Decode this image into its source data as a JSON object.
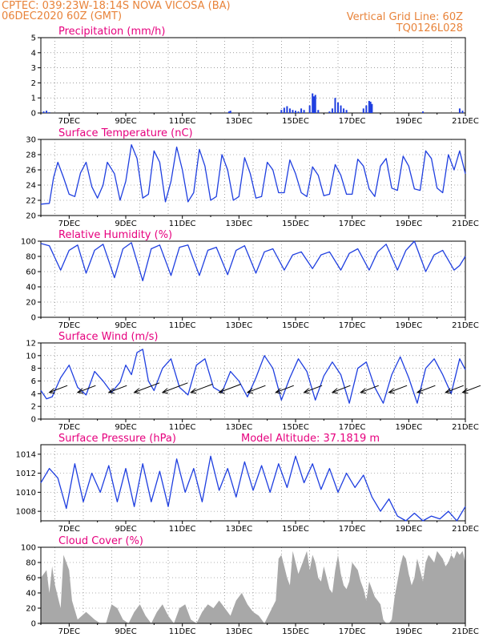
{
  "header": {
    "line1_left": "CPTEC:   039:23W-18:14S   NOVA VICOSA (BA)",
    "line2_left": "06DEC2020 60Z (GMT)",
    "line1_right": "Vertical Grid Line: 60Z",
    "line2_right": "TQ0126L028"
  },
  "colors": {
    "header": "#e8833a",
    "title": "#e6007e",
    "line": "#1f3fe0",
    "bar": "#1f3fe0",
    "cloud": "#a8a8a8",
    "grid": "#666666"
  },
  "date_ticks": [
    "7DEC",
    "9DEC",
    "11DEC",
    "13DEC",
    "15DEC",
    "17DEC",
    "19DEC",
    "21DEC"
  ],
  "chart_data": [
    {
      "id": "precip",
      "type": "bar",
      "title": "Precipitation (mm/h)",
      "ylim": [
        0,
        5
      ],
      "yticks": [
        0,
        1,
        2,
        3,
        4,
        5
      ],
      "x_days": [
        6.1,
        6.2,
        6.3,
        12.65,
        12.7,
        14.5,
        14.6,
        14.7,
        14.8,
        14.9,
        15.0,
        15.1,
        15.2,
        15.3,
        15.5,
        15.6,
        15.65,
        15.7,
        15.8,
        16.2,
        16.3,
        16.4,
        16.5,
        16.6,
        16.7,
        16.8,
        17.4,
        17.5,
        17.6,
        17.65,
        17.7,
        19.5,
        20.8,
        20.9
      ],
      "values": [
        0.1,
        0.15,
        0.05,
        0.1,
        0.15,
        0.2,
        0.35,
        0.45,
        0.3,
        0.2,
        0.15,
        0.1,
        0.3,
        0.2,
        0.5,
        1.3,
        1.1,
        1.2,
        0.2,
        0.1,
        0.3,
        1.0,
        0.7,
        0.5,
        0.3,
        0.2,
        0.3,
        0.5,
        0.8,
        0.75,
        0.6,
        0.1,
        0.3,
        0.15
      ]
    },
    {
      "id": "temp",
      "type": "line",
      "title": "Surface Temperature (nC)",
      "ylim": [
        20,
        30
      ],
      "yticks": [
        20,
        22,
        24,
        26,
        28,
        30
      ],
      "x_days": [
        6.0,
        6.3,
        6.45,
        6.6,
        6.8,
        7.0,
        7.2,
        7.4,
        7.6,
        7.8,
        8.0,
        8.2,
        8.35,
        8.6,
        8.8,
        9.0,
        9.2,
        9.4,
        9.6,
        9.8,
        10.0,
        10.2,
        10.4,
        10.6,
        10.8,
        11.0,
        11.2,
        11.4,
        11.6,
        11.8,
        12.0,
        12.2,
        12.4,
        12.6,
        12.8,
        13.0,
        13.2,
        13.4,
        13.6,
        13.8,
        14.0,
        14.2,
        14.4,
        14.6,
        14.8,
        15.0,
        15.2,
        15.4,
        15.6,
        15.8,
        16.0,
        16.2,
        16.4,
        16.6,
        16.8,
        17.0,
        17.2,
        17.4,
        17.6,
        17.8,
        18.0,
        18.2,
        18.4,
        18.6,
        18.8,
        19.0,
        19.2,
        19.4,
        19.6,
        19.8,
        20.0,
        20.2,
        20.4,
        20.6,
        20.8,
        21.0
      ],
      "values": [
        21.5,
        21.6,
        25.0,
        27.0,
        25.0,
        22.8,
        22.5,
        25.6,
        27.0,
        23.8,
        22.3,
        24.0,
        27.0,
        25.5,
        22.0,
        24.5,
        29.3,
        27.5,
        22.3,
        22.8,
        28.5,
        27.0,
        21.8,
        24.5,
        29.0,
        26.0,
        21.8,
        23.0,
        28.7,
        26.5,
        22.0,
        22.5,
        28.0,
        26.0,
        22.0,
        22.5,
        27.6,
        25.5,
        22.3,
        22.5,
        27.0,
        26.0,
        23.0,
        23.0,
        27.3,
        25.5,
        23.0,
        22.5,
        26.4,
        25.3,
        22.6,
        22.8,
        26.7,
        25.3,
        22.8,
        22.8,
        27.4,
        26.5,
        23.5,
        22.5,
        26.5,
        27.5,
        23.6,
        23.3,
        27.8,
        26.5,
        23.5,
        23.3,
        28.5,
        27.5,
        23.6,
        23.0,
        28.0,
        26.0,
        28.5,
        25.5
      ]
    },
    {
      "id": "rh",
      "type": "line",
      "title": "Relative Humidity (%)",
      "ylim": [
        0,
        100
      ],
      "yticks": [
        0,
        20,
        40,
        60,
        80,
        100
      ],
      "x_days": [
        6.0,
        6.3,
        6.7,
        7.0,
        7.3,
        7.6,
        7.9,
        8.2,
        8.6,
        8.9,
        9.2,
        9.6,
        9.9,
        10.2,
        10.6,
        10.9,
        11.2,
        11.6,
        11.9,
        12.2,
        12.6,
        12.9,
        13.2,
        13.6,
        13.9,
        14.2,
        14.6,
        14.9,
        15.2,
        15.6,
        15.9,
        16.2,
        16.6,
        16.9,
        17.2,
        17.6,
        17.9,
        18.2,
        18.6,
        18.9,
        19.2,
        19.6,
        19.9,
        20.2,
        20.6,
        20.8,
        21.0
      ],
      "values": [
        97,
        94,
        62,
        88,
        95,
        58,
        88,
        96,
        52,
        90,
        98,
        48,
        90,
        95,
        55,
        92,
        95,
        55,
        88,
        92,
        56,
        88,
        94,
        58,
        86,
        90,
        62,
        82,
        86,
        64,
        82,
        86,
        62,
        84,
        90,
        62,
        86,
        96,
        62,
        88,
        100,
        60,
        82,
        88,
        62,
        68,
        80
      ]
    },
    {
      "id": "wind",
      "type": "line",
      "title": "Surface Wind (m/s)",
      "ylim": [
        0,
        12
      ],
      "yticks": [
        0,
        2,
        4,
        6,
        8,
        10,
        12
      ],
      "x_days": [
        6.0,
        6.2,
        6.4,
        6.7,
        7.0,
        7.3,
        7.6,
        7.9,
        8.2,
        8.5,
        8.8,
        9.0,
        9.2,
        9.4,
        9.6,
        9.8,
        10.0,
        10.3,
        10.6,
        10.9,
        11.2,
        11.5,
        11.8,
        12.1,
        12.4,
        12.7,
        13.0,
        13.3,
        13.6,
        13.9,
        14.2,
        14.5,
        14.8,
        15.1,
        15.4,
        15.7,
        16.0,
        16.3,
        16.6,
        16.9,
        17.2,
        17.5,
        17.8,
        18.1,
        18.4,
        18.7,
        19.0,
        19.3,
        19.6,
        19.9,
        20.2,
        20.5,
        20.8,
        21.0
      ],
      "values": [
        4.5,
        3.2,
        3.5,
        6.5,
        8.5,
        5.0,
        3.8,
        7.5,
        6.0,
        4.2,
        5.8,
        8.5,
        7.0,
        10.5,
        11.0,
        6.0,
        4.5,
        8.0,
        9.5,
        5.0,
        3.8,
        8.5,
        9.5,
        5.0,
        4.2,
        7.5,
        6.0,
        3.5,
        6.5,
        10.0,
        8.0,
        3.0,
        6.5,
        9.5,
        7.5,
        3.0,
        6.8,
        9.0,
        7.0,
        2.5,
        8.0,
        9.0,
        5.0,
        2.5,
        7.0,
        9.8,
        6.5,
        2.5,
        8.0,
        9.5,
        7.0,
        4.0,
        9.5,
        7.8
      ],
      "barb_x_days": [
        6.3,
        7.3,
        8.4,
        9.3,
        10.3,
        11.3,
        12.3,
        13.3,
        14.3,
        15.3,
        16.3,
        17.3,
        18.3,
        19.3,
        20.3,
        20.9
      ],
      "barb_speed": [
        5,
        5,
        5,
        7,
        7,
        6,
        6,
        5,
        5,
        5,
        5,
        5,
        5,
        5,
        5,
        5
      ]
    },
    {
      "id": "pressure",
      "type": "line",
      "title": "Surface Pressure (hPa)",
      "annotation": "Model Altitude: 37.1819 m",
      "ylim": [
        1007,
        1015
      ],
      "yticks": [
        1008,
        1010,
        1012,
        1014
      ],
      "x_days": [
        6.0,
        6.3,
        6.6,
        6.9,
        7.2,
        7.5,
        7.8,
        8.1,
        8.4,
        8.7,
        9.0,
        9.3,
        9.6,
        9.9,
        10.2,
        10.5,
        10.8,
        11.1,
        11.4,
        11.7,
        12.0,
        12.3,
        12.6,
        12.9,
        13.2,
        13.5,
        13.8,
        14.1,
        14.4,
        14.7,
        15.0,
        15.3,
        15.6,
        15.9,
        16.2,
        16.5,
        16.8,
        17.1,
        17.4,
        17.7,
        18.0,
        18.3,
        18.6,
        18.9,
        19.2,
        19.5,
        19.8,
        20.1,
        20.4,
        20.7,
        21.0
      ],
      "values": [
        1011.0,
        1012.5,
        1011.5,
        1008.3,
        1013.0,
        1009.0,
        1012.0,
        1010.0,
        1012.8,
        1009.0,
        1012.5,
        1008.5,
        1013.0,
        1009.0,
        1012.2,
        1008.5,
        1013.5,
        1010.0,
        1012.5,
        1009.0,
        1013.8,
        1010.2,
        1012.5,
        1009.5,
        1013.2,
        1010.2,
        1012.8,
        1010.0,
        1013.0,
        1010.5,
        1013.8,
        1011.0,
        1013.0,
        1010.3,
        1012.5,
        1010.0,
        1012.0,
        1010.5,
        1011.8,
        1009.5,
        1008.0,
        1009.3,
        1007.5,
        1007.0,
        1007.8,
        1007.0,
        1007.5,
        1007.2,
        1008.0,
        1007.0,
        1008.5
      ]
    },
    {
      "id": "cloud",
      "type": "area",
      "title": "Cloud Cover (%)",
      "ylim": [
        0,
        100
      ],
      "yticks": [
        0,
        20,
        40,
        60,
        80,
        100
      ],
      "x_days": [
        6.0,
        6.2,
        6.3,
        6.4,
        6.5,
        6.6,
        6.7,
        6.8,
        6.9,
        7.0,
        7.1,
        7.3,
        7.6,
        7.9,
        8.1,
        8.3,
        8.5,
        8.7,
        8.9,
        9.1,
        9.3,
        9.5,
        9.7,
        9.9,
        10.1,
        10.3,
        10.5,
        10.7,
        10.9,
        11.1,
        11.3,
        11.5,
        11.7,
        11.9,
        12.1,
        12.3,
        12.5,
        12.7,
        12.9,
        13.1,
        13.3,
        13.5,
        13.7,
        13.9,
        14.1,
        14.3,
        14.4,
        14.5,
        14.6,
        14.7,
        14.8,
        14.9,
        15.0,
        15.1,
        15.2,
        15.3,
        15.4,
        15.5,
        15.6,
        15.7,
        15.8,
        15.9,
        16.0,
        16.1,
        16.2,
        16.3,
        16.4,
        16.5,
        16.6,
        16.7,
        16.8,
        16.9,
        17.0,
        17.1,
        17.2,
        17.3,
        17.4,
        17.5,
        17.6,
        17.7,
        17.8,
        17.9,
        18.0,
        18.1,
        18.2,
        18.3,
        18.4,
        18.5,
        18.6,
        18.7,
        18.8,
        18.9,
        19.0,
        19.1,
        19.2,
        19.3,
        19.4,
        19.5,
        19.6,
        19.7,
        19.8,
        19.9,
        20.0,
        20.1,
        20.2,
        20.3,
        20.4,
        20.5,
        20.6,
        20.7,
        20.8,
        20.9,
        21.0
      ],
      "values": [
        60,
        70,
        40,
        75,
        50,
        35,
        20,
        90,
        80,
        70,
        30,
        5,
        15,
        5,
        0,
        0,
        25,
        20,
        5,
        0,
        15,
        25,
        10,
        0,
        15,
        25,
        10,
        0,
        20,
        25,
        5,
        0,
        15,
        25,
        20,
        30,
        20,
        10,
        30,
        40,
        25,
        15,
        10,
        0,
        15,
        30,
        85,
        90,
        75,
        60,
        50,
        95,
        80,
        65,
        75,
        85,
        95,
        70,
        90,
        80,
        60,
        55,
        75,
        60,
        45,
        40,
        70,
        90,
        65,
        50,
        45,
        55,
        80,
        75,
        70,
        55,
        45,
        30,
        55,
        45,
        35,
        30,
        25,
        5,
        0,
        0,
        5,
        35,
        55,
        75,
        90,
        85,
        65,
        50,
        60,
        85,
        70,
        55,
        80,
        90,
        85,
        80,
        95,
        90,
        85,
        75,
        80,
        90,
        85,
        95,
        90,
        95,
        80
      ]
    }
  ]
}
